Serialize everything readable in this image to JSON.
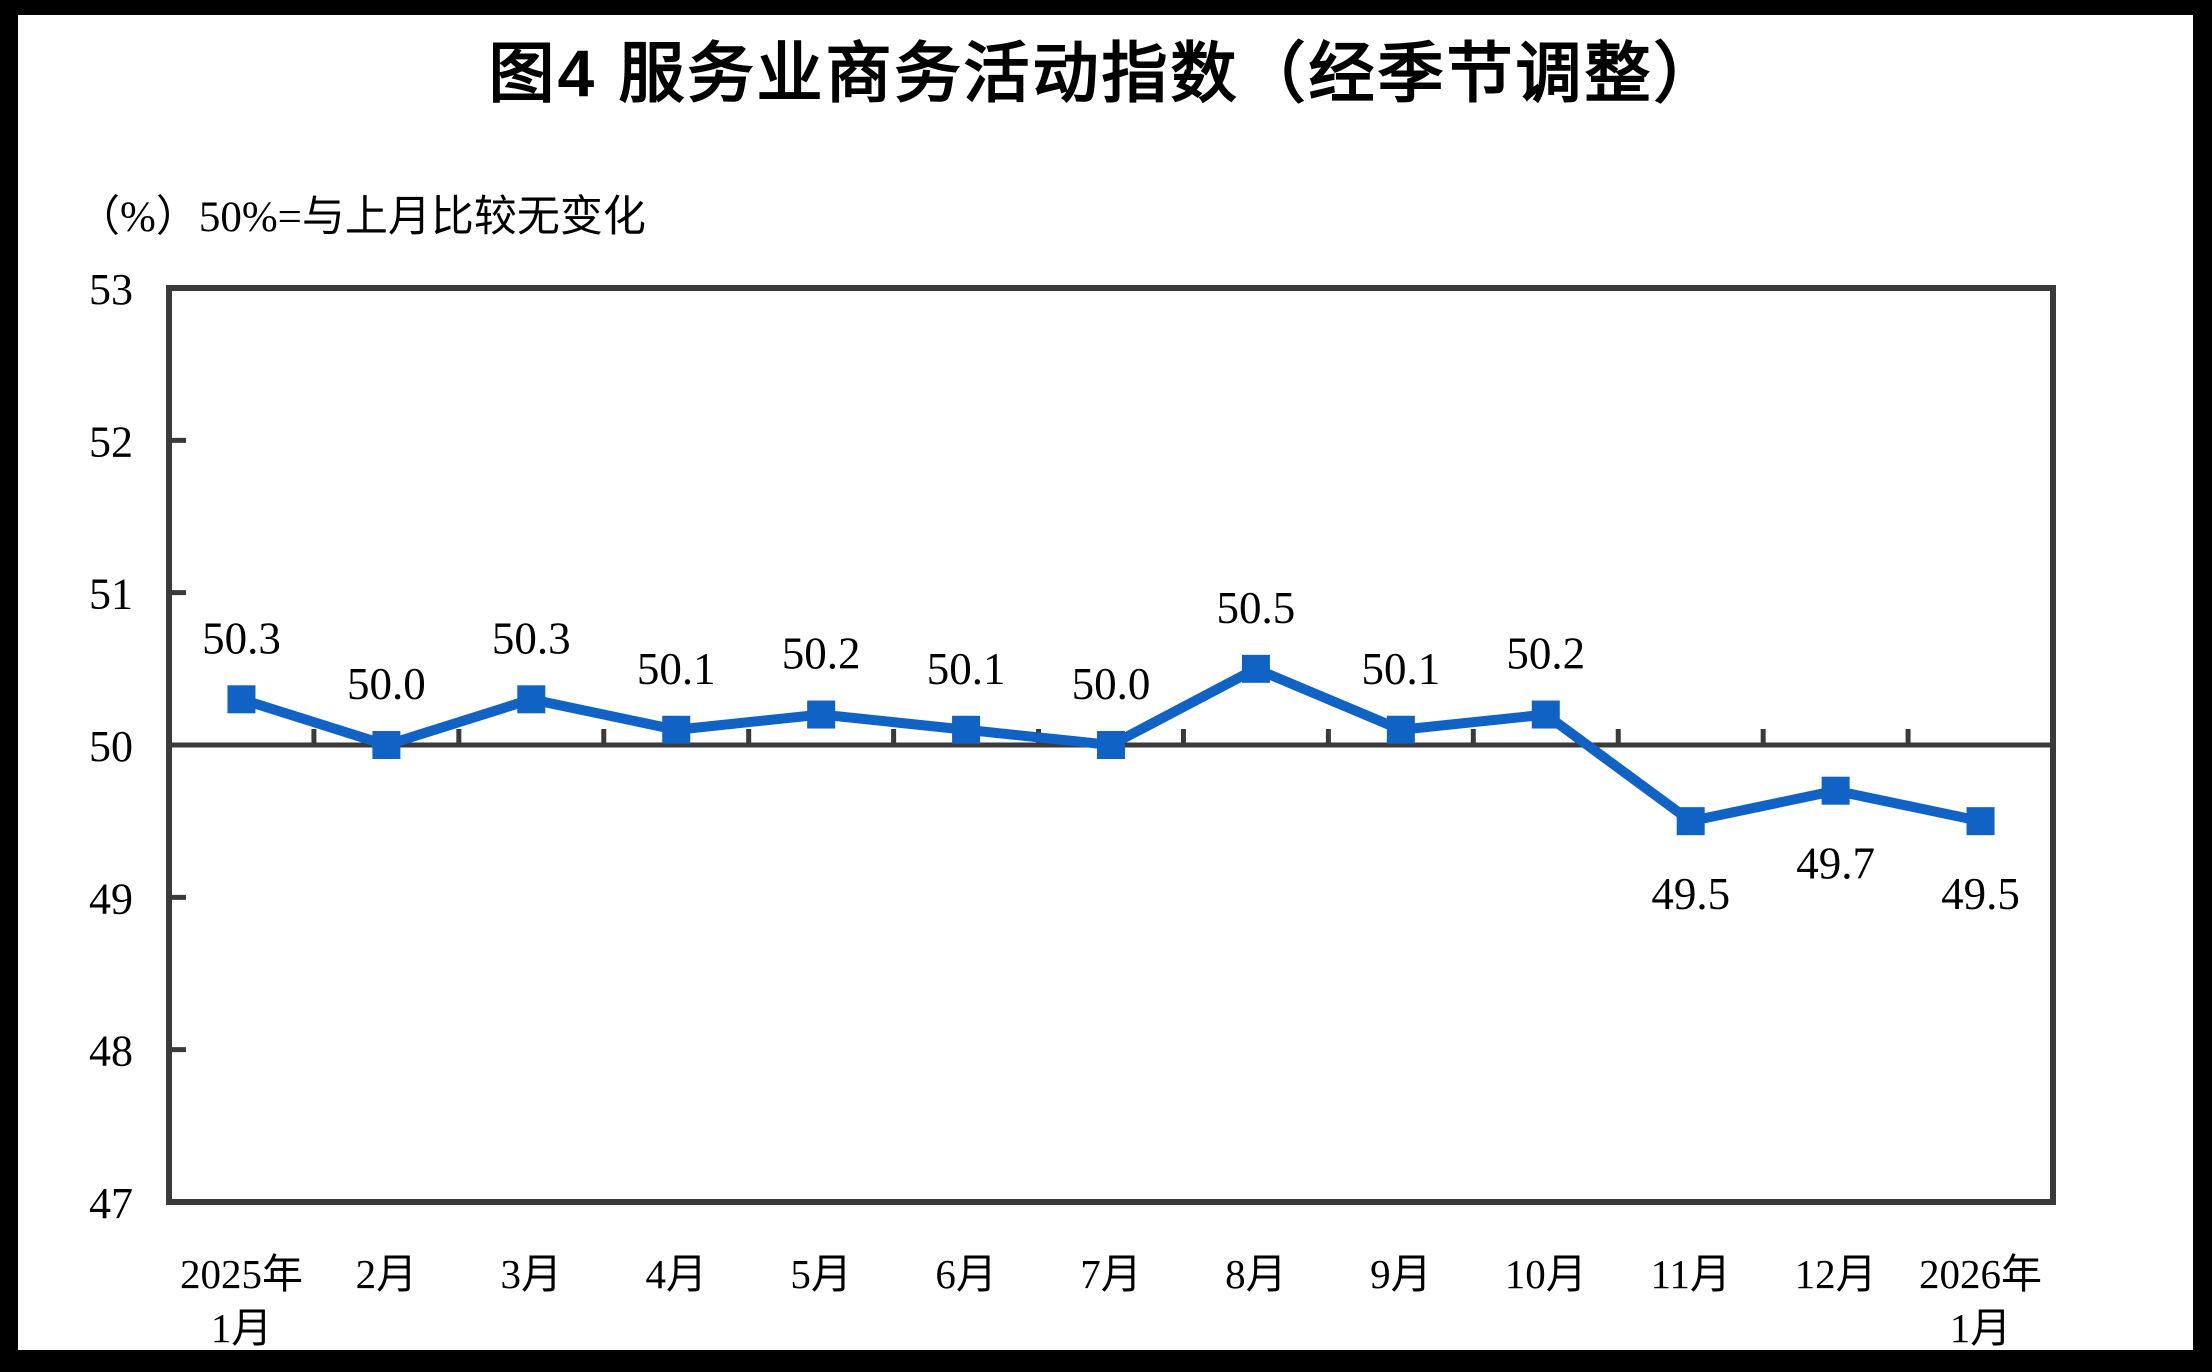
{
  "title": "图4 服务业商务活动指数（经季节调整）",
  "unit_note": "（%）50%=与上月比较无变化",
  "chart_data": {
    "type": "line",
    "title": "图4 服务业商务活动指数（经季节调整）",
    "unit_note": "（%）50%=与上月比较无变化",
    "categories": [
      "2025年\n1月",
      "2月",
      "3月",
      "4月",
      "5月",
      "6月",
      "7月",
      "8月",
      "9月",
      "10月",
      "11月",
      "12月",
      "2026年\n1月"
    ],
    "values": [
      50.3,
      50.0,
      50.3,
      50.1,
      50.2,
      50.1,
      50.0,
      50.5,
      50.1,
      50.2,
      49.5,
      49.7,
      49.5
    ],
    "data_labels": [
      "50.3",
      "50.0",
      "50.3",
      "50.1",
      "50.2",
      "50.1",
      "50.0",
      "50.5",
      "50.1",
      "50.2",
      "49.5",
      "49.7",
      "49.5"
    ],
    "ylim": [
      47,
      53
    ],
    "yticks": [
      47,
      48,
      49,
      50,
      51,
      52,
      53
    ],
    "baseline_value": 50,
    "grid": "off",
    "legend": "none",
    "marker": "square",
    "series_color": "#1062C5",
    "axis_color": "#3A3A3A",
    "text_color": "#000000",
    "frame_color": "#000000"
  }
}
